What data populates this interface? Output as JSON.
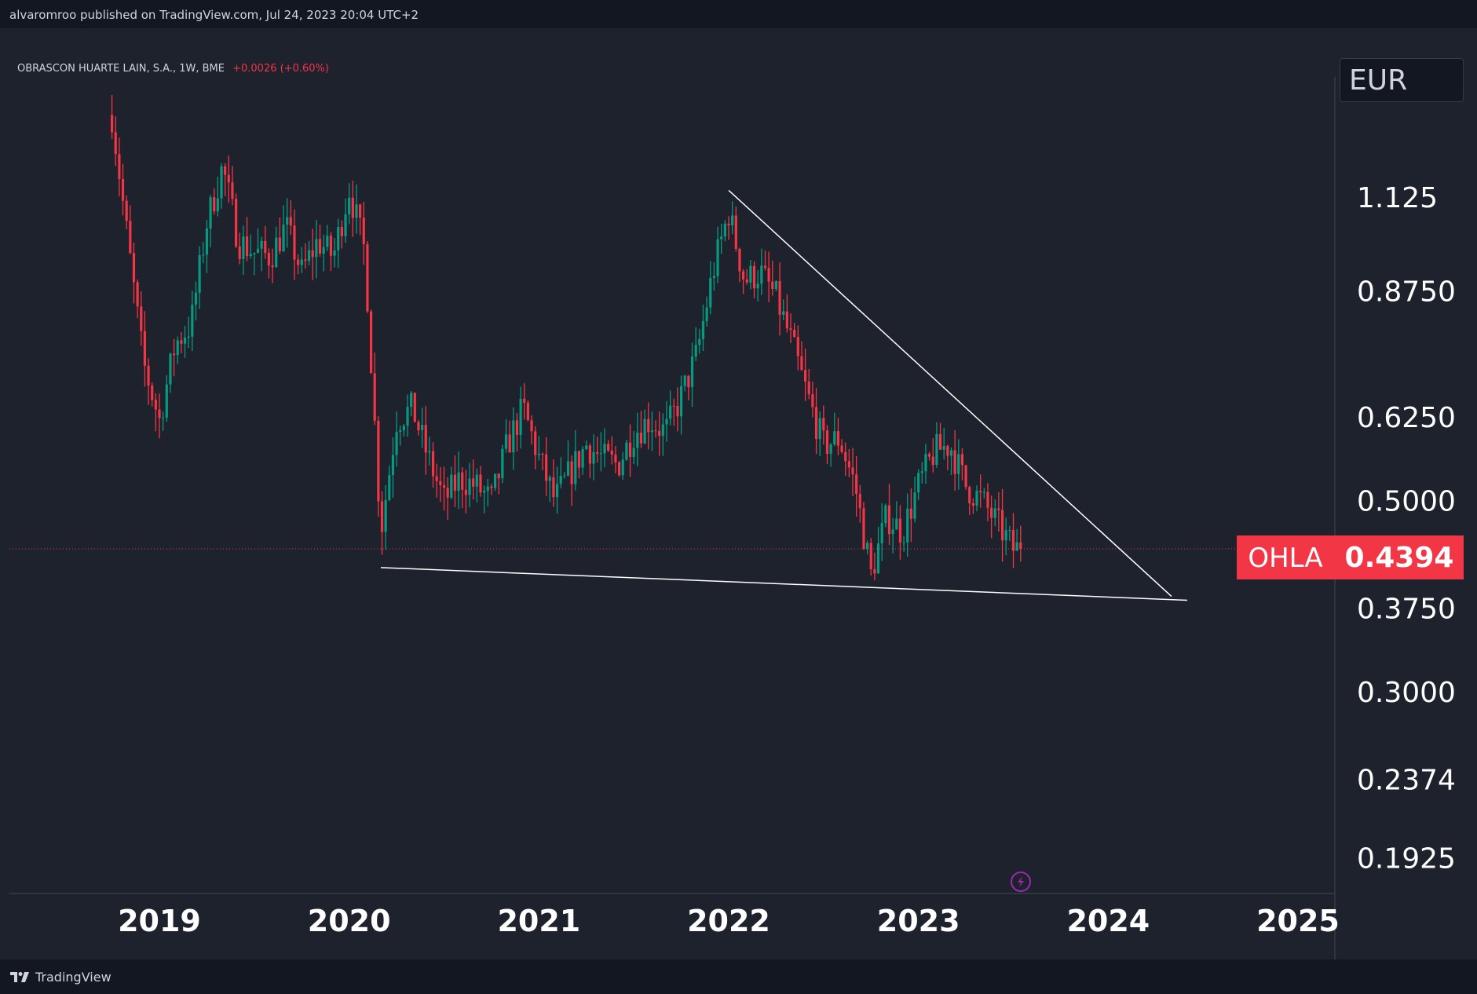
{
  "header": {
    "published_text": "alvaromroo published on TradingView.com, Jul 24, 2023 20:04 UTC+2"
  },
  "legend": {
    "symbol_title": "OBRASCON HUARTE LAIN, S.A., 1W, BME",
    "change_text": "+0.0026 (+0.60%)"
  },
  "currency_label": "EUR",
  "price_tag": {
    "ticker": "OHLA",
    "value": "0.4394"
  },
  "footer": {
    "brand": "TradingView"
  },
  "colors": {
    "background": "#1e222d",
    "up_candle": "#089981",
    "down_candle": "#f23645",
    "trendline": "#ffffff",
    "price_tag_bg": "#f23645",
    "replay_icon": "#9c27b0"
  },
  "icons": {
    "replay": "lightning-circle-icon",
    "brand_logo": "tradingview-logo-icon"
  },
  "chart_data": {
    "type": "candlestick",
    "symbol": "OHLA",
    "interval": "1W",
    "exchange": "BME",
    "y_scale": "log",
    "y_ticks": [
      "1.125",
      "0.8750",
      "0.6250",
      "0.5000",
      "0.3750",
      "0.3000",
      "0.2374",
      "0.1925"
    ],
    "x_ticks": [
      "2019",
      "2020",
      "2021",
      "2022",
      "2023",
      "2024",
      "2025"
    ],
    "ylim": [
      0.175,
      1.55
    ],
    "last_price": 0.4394,
    "series": [
      {
        "name": "OHLA",
        "points": [
          {
            "x": "2018-10",
            "y": 1.4
          },
          {
            "x": "2018-11",
            "y": 1.0
          },
          {
            "x": "2018-12",
            "y": 0.72
          },
          {
            "x": "2019-01",
            "y": 0.62
          },
          {
            "x": "2019-02",
            "y": 0.76
          },
          {
            "x": "2019-03",
            "y": 0.8
          },
          {
            "x": "2019-04",
            "y": 1.05
          },
          {
            "x": "2019-05",
            "y": 1.22
          },
          {
            "x": "2019-06",
            "y": 1.0
          },
          {
            "x": "2019-07",
            "y": 0.97
          },
          {
            "x": "2019-08",
            "y": 0.96
          },
          {
            "x": "2019-09",
            "y": 1.04
          },
          {
            "x": "2019-10",
            "y": 0.92
          },
          {
            "x": "2019-11",
            "y": 1.0
          },
          {
            "x": "2019-12",
            "y": 0.96
          },
          {
            "x": "2020-01",
            "y": 1.15
          },
          {
            "x": "2020-02",
            "y": 0.97
          },
          {
            "x": "2020-03",
            "y": 0.46
          },
          {
            "x": "2020-04",
            "y": 0.62
          },
          {
            "x": "2020-05",
            "y": 0.64
          },
          {
            "x": "2020-06",
            "y": 0.56
          },
          {
            "x": "2020-07",
            "y": 0.5
          },
          {
            "x": "2020-08",
            "y": 0.53
          },
          {
            "x": "2020-09",
            "y": 0.52
          },
          {
            "x": "2020-10",
            "y": 0.5
          },
          {
            "x": "2020-11",
            "y": 0.58
          },
          {
            "x": "2020-12",
            "y": 0.64
          },
          {
            "x": "2021-01",
            "y": 0.56
          },
          {
            "x": "2021-02",
            "y": 0.5
          },
          {
            "x": "2021-03",
            "y": 0.54
          },
          {
            "x": "2021-04",
            "y": 0.58
          },
          {
            "x": "2021-05",
            "y": 0.56
          },
          {
            "x": "2021-06",
            "y": 0.55
          },
          {
            "x": "2021-07",
            "y": 0.6
          },
          {
            "x": "2021-08",
            "y": 0.62
          },
          {
            "x": "2021-09",
            "y": 0.6
          },
          {
            "x": "2021-10",
            "y": 0.66
          },
          {
            "x": "2021-11",
            "y": 0.74
          },
          {
            "x": "2021-12",
            "y": 0.92
          },
          {
            "x": "2022-01",
            "y": 1.08
          },
          {
            "x": "2022-02",
            "y": 0.9
          },
          {
            "x": "2022-03",
            "y": 0.92
          },
          {
            "x": "2022-04",
            "y": 0.86
          },
          {
            "x": "2022-05",
            "y": 0.76
          },
          {
            "x": "2022-06",
            "y": 0.66
          },
          {
            "x": "2022-07",
            "y": 0.58
          },
          {
            "x": "2022-08",
            "y": 0.59
          },
          {
            "x": "2022-09",
            "y": 0.52
          },
          {
            "x": "2022-10",
            "y": 0.41
          },
          {
            "x": "2022-11",
            "y": 0.48
          },
          {
            "x": "2022-12",
            "y": 0.46
          },
          {
            "x": "2023-01",
            "y": 0.52
          },
          {
            "x": "2023-02",
            "y": 0.57
          },
          {
            "x": "2023-03",
            "y": 0.58
          },
          {
            "x": "2023-04",
            "y": 0.52
          },
          {
            "x": "2023-05",
            "y": 0.5
          },
          {
            "x": "2023-06",
            "y": 0.47
          },
          {
            "x": "2023-07",
            "y": 0.4394
          }
        ]
      }
    ],
    "annotations": [
      {
        "type": "trendline",
        "name": "descending-resistance",
        "from": {
          "x": "2022-01",
          "y": 1.145
        },
        "to": {
          "x": "2024-05",
          "y": 0.387
        }
      },
      {
        "type": "trendline",
        "name": "support",
        "from": {
          "x": "2020-03",
          "y": 0.418
        },
        "to": {
          "x": "2024-06",
          "y": 0.383
        }
      }
    ],
    "last_price_line": true
  }
}
